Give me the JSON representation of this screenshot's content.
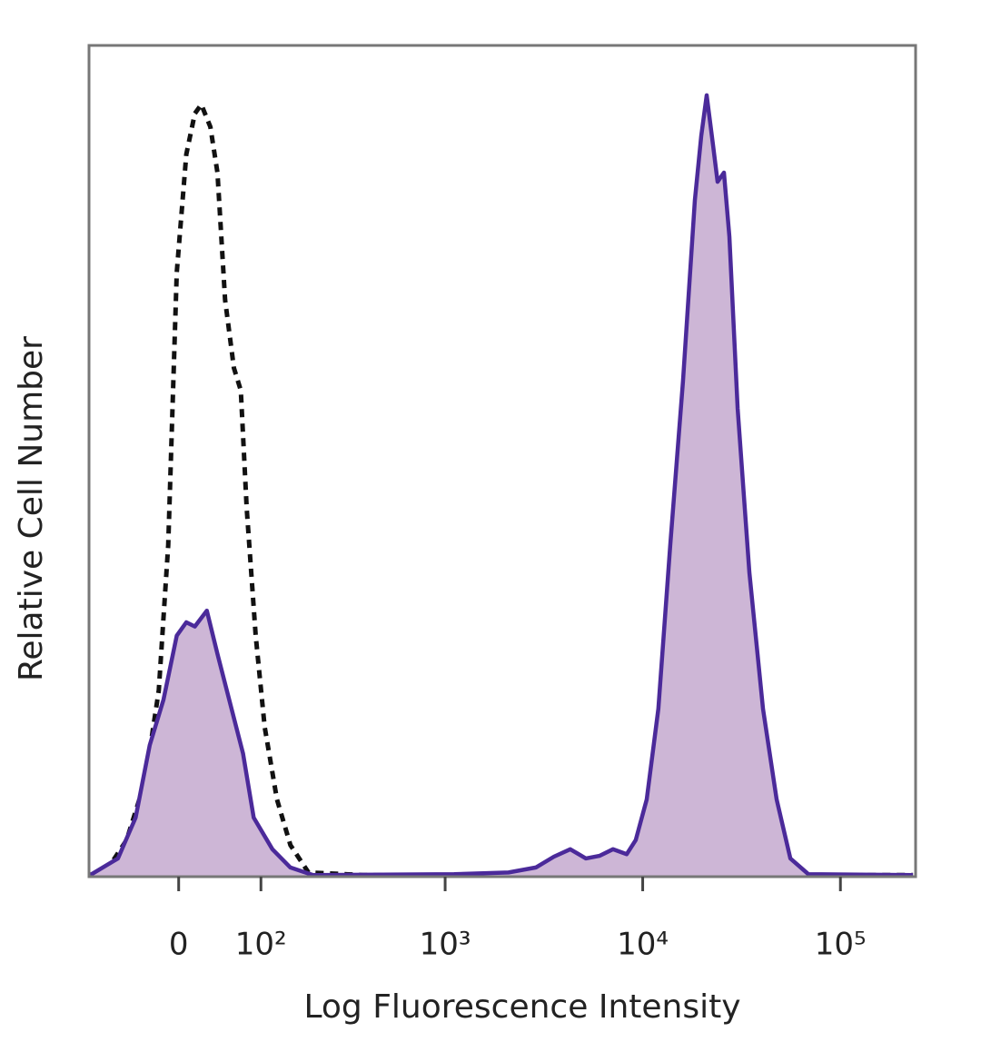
{
  "chart_data": {
    "type": "histogram-overlay",
    "xlabel": "Log Fluorescence Intensity",
    "ylabel": "Relative Cell Number",
    "x_scale": "biexponential",
    "xlim": [
      -112,
      240000
    ],
    "ylim": [
      0,
      100
    ],
    "xticks": [
      0,
      {
        "value": 100,
        "label": "10²"
      },
      {
        "value": 1000,
        "label": "10³"
      },
      {
        "value": 10000,
        "label": "10⁴"
      },
      {
        "value": 100000,
        "label": "10⁵"
      }
    ],
    "series": [
      {
        "color": "#111111",
        "dashed": true,
        "fill": null,
        "x": [
          -110,
          -82,
          -58,
          -36,
          -21,
          -11,
          -2,
          8,
          17,
          24,
          34,
          42,
          51,
          62,
          71,
          79,
          92,
          106,
          127,
          153,
          194,
          381,
          232700
        ],
        "values": [
          0.2,
          1.1,
          4.4,
          11.5,
          22.4,
          39.9,
          72.7,
          86.9,
          91.8,
          92.9,
          90.2,
          84.7,
          69.4,
          61.2,
          58.5,
          44.3,
          29.0,
          18.0,
          9.3,
          3.8,
          0.5,
          0.2,
          0.2
        ]
      },
      {
        "color": "#4b2a9a",
        "dashed": false,
        "fill": "#cdb6d6",
        "x": [
          -110,
          -69,
          -47,
          -31,
          -16,
          -2,
          8,
          17,
          30,
          42,
          59,
          74,
          89,
          119,
          153,
          206,
          1110,
          2094,
          2880,
          3555,
          4302,
          5157,
          6039,
          7074,
          8298,
          9225,
          10476,
          12006,
          13779,
          15984,
          18360,
          19773,
          21060,
          22689,
          23922,
          25758,
          27450,
          30204,
          34650,
          40590,
          47574,
          55800,
          68850,
          232700
        ],
        "values": [
          0.2,
          2.2,
          7.1,
          15.8,
          21.3,
          29.0,
          30.6,
          30.1,
          32.0,
          26.8,
          20.2,
          14.8,
          7.1,
          3.3,
          1.1,
          0.2,
          0.3,
          0.5,
          1.1,
          2.4,
          3.3,
          2.2,
          2.5,
          3.3,
          2.7,
          4.4,
          9.3,
          20.2,
          39.9,
          59.6,
          81.4,
          89.1,
          94.0,
          88.0,
          83.6,
          84.7,
          77.0,
          56.3,
          36.6,
          20.2,
          9.3,
          2.2,
          0.3,
          0.2
        ]
      }
    ]
  }
}
